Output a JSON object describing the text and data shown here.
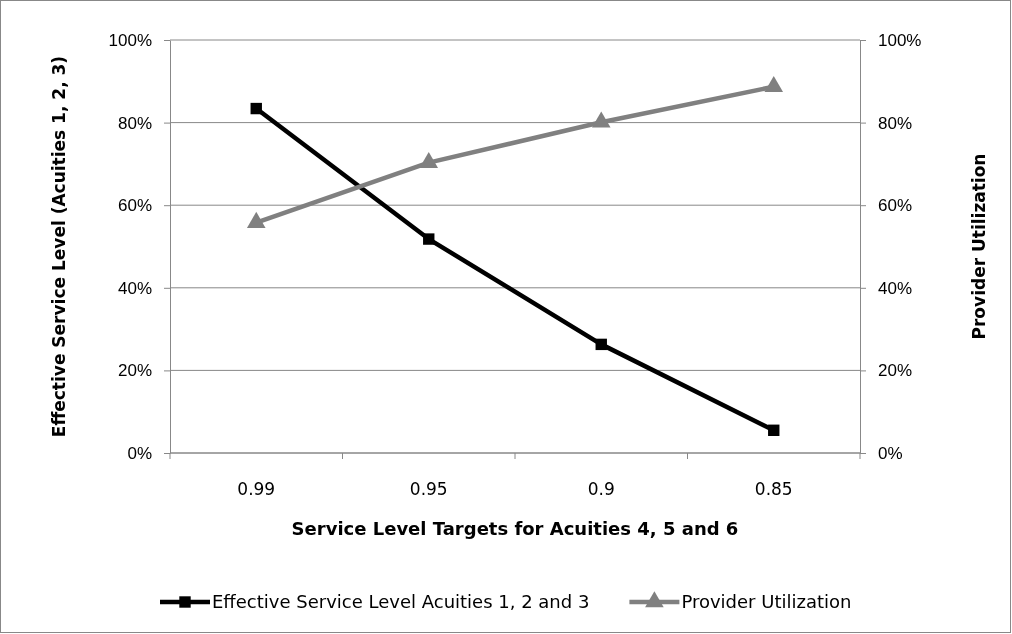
{
  "chart_data": {
    "type": "line",
    "xlabel": "Service Level Targets for Acuities 4, 5 and 6",
    "ylabel": "Effective Service Level (Acuities 1, 2, 3)",
    "y2label": "Provider Utilization",
    "categories": [
      "0.99",
      "0.95",
      "0.9",
      "0.85"
    ],
    "series": [
      {
        "name": "Effective Service Level Acuities 1, 2 and 3",
        "color": "#000000",
        "marker": "square",
        "values": [
          83.4,
          51.8,
          26.3,
          5.5
        ]
      },
      {
        "name": "Provider Utilization",
        "color": "#808080",
        "marker": "triangle",
        "axis": "y2",
        "values": [
          55.8,
          70.3,
          80.1,
          88.7
        ]
      }
    ],
    "ylim": [
      0,
      100
    ],
    "yticks": [
      {
        "value": 0,
        "label": "0%"
      },
      {
        "value": 20,
        "label": "20%"
      },
      {
        "value": 40,
        "label": "40%"
      },
      {
        "value": 60,
        "label": "60%"
      },
      {
        "value": 80,
        "label": "80%"
      },
      {
        "value": 100,
        "label": "100%"
      }
    ],
    "y2lim": [
      0,
      100
    ],
    "y2ticks": [
      {
        "value": 0,
        "label": "0%"
      },
      {
        "value": 20,
        "label": "20%"
      },
      {
        "value": 40,
        "label": "40%"
      },
      {
        "value": 60,
        "label": "60%"
      },
      {
        "value": 80,
        "label": "80%"
      },
      {
        "value": 100,
        "label": "100%"
      }
    ],
    "grid": "y",
    "legend": "bottom",
    "line_style": "solid"
  }
}
